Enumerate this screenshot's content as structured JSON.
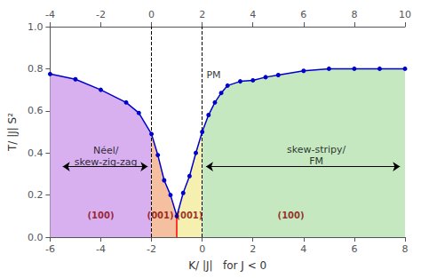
{
  "chart_data": {
    "type": "line",
    "xlabel": "K/ |J|   for J < 0",
    "ylabel": "T/ |J| S²",
    "x": [
      -6,
      -5,
      -4,
      -3,
      -2.5,
      -2,
      -1.75,
      -1.5,
      -1.25,
      -1,
      -0.75,
      -0.5,
      -0.25,
      0,
      0.25,
      0.5,
      0.75,
      1,
      1.5,
      2,
      2.5,
      3,
      4,
      5,
      6,
      7,
      8
    ],
    "values": [
      0.775,
      0.75,
      0.7,
      0.64,
      0.59,
      0.49,
      0.39,
      0.27,
      0.2,
      0.1,
      0.21,
      0.29,
      0.4,
      0.5,
      0.58,
      0.64,
      0.685,
      0.72,
      0.74,
      0.745,
      0.76,
      0.77,
      0.79,
      0.8,
      0.8,
      0.8,
      0.8
    ],
    "color": "#0000cc",
    "marker": "circle",
    "xlim": [
      -6,
      8
    ],
    "ylim": [
      0.0,
      1.0
    ],
    "xticks": [
      -6,
      -4,
      -2,
      0,
      2,
      4,
      6,
      8
    ],
    "yticks": [
      {
        "value": 0.0,
        "label": "0.0"
      },
      0.2,
      0.4,
      0.6,
      0.8,
      {
        "value": 1.0,
        "label": "1.0"
      }
    ],
    "x2lim": [
      -4,
      10
    ],
    "x2ticks": [
      -4,
      -2,
      0,
      2,
      4,
      6,
      8,
      10
    ],
    "grid": false,
    "regions": [
      {
        "from": -6,
        "to": -2,
        "color": "#d8b0f0"
      },
      {
        "from": -2,
        "to": -1,
        "color": "#f5c0a0"
      },
      {
        "from": -1,
        "to": 0,
        "color": "#f5f0b0"
      },
      {
        "from": 0,
        "to": 8,
        "color": "#c5e8c0"
      }
    ],
    "vlines": [
      {
        "x": -2,
        "color": "#000000",
        "line_style": "dashed"
      },
      {
        "x": 0,
        "color": "#000000",
        "line_style": "dashed"
      },
      {
        "x": -1,
        "y": [
          0.0,
          0.1
        ],
        "color": "#ff0000",
        "line_style": "solid"
      }
    ],
    "arrows": [
      {
        "x1": -5.5,
        "x2": -2.15,
        "y": 0.335
      },
      {
        "x1": 0.15,
        "x2": 7.8,
        "y": 0.335
      }
    ],
    "annotations": [
      {
        "text": "PM",
        "x": 0.45,
        "y": 0.77
      },
      {
        "text": "Néel/\nskew-zig-zag",
        "x": -3.8,
        "y": 0.385
      },
      {
        "text": "skew-stripy/\nFM",
        "x": 4.5,
        "y": 0.39
      },
      {
        "text": "(100)",
        "x": -4.0,
        "y": 0.075,
        "color": "#880000"
      },
      {
        "text": "(001)",
        "x": -1.65,
        "y": 0.075,
        "color": "#880000"
      },
      {
        "text": "(001)",
        "x": -0.5,
        "y": 0.075,
        "color": "#880000"
      },
      {
        "text": "(100)",
        "x": 3.5,
        "y": 0.075,
        "color": "#880000"
      }
    ]
  }
}
